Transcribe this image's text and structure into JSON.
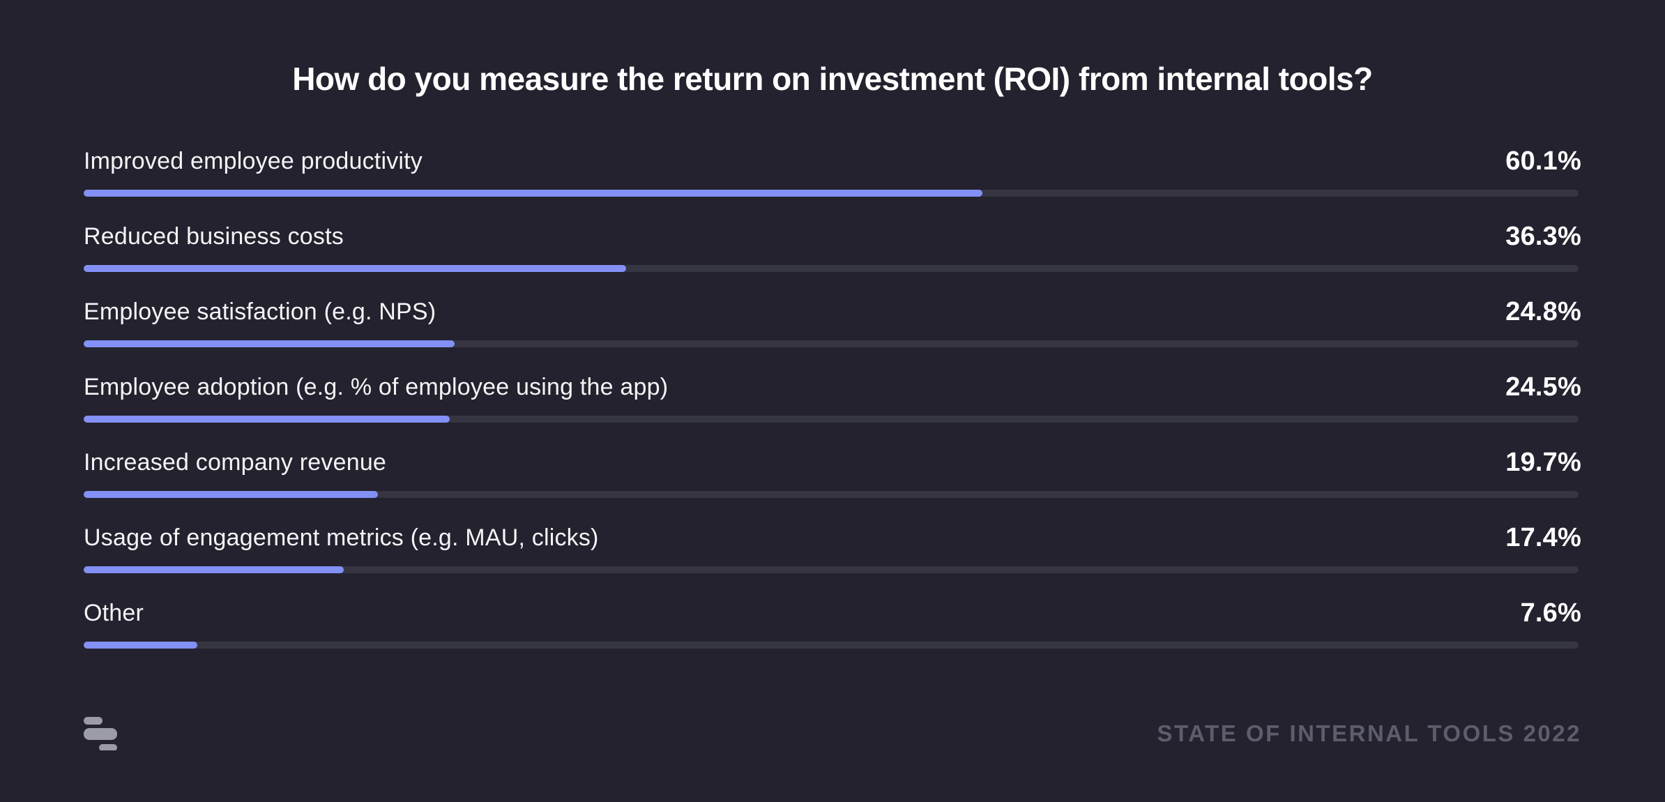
{
  "title": "How do you measure the return on investment (ROI) from internal tools?",
  "footer": {
    "logo_icon": "retool-logo",
    "source_label": "STATE OF INTERNAL TOOLS 2022"
  },
  "colors": {
    "background": "#23222E",
    "bar_fill": "#8390F6",
    "bar_track": "#363542",
    "title_text": "#FFFFFF",
    "label_text": "#F4F4F6",
    "value_text": "#FFFFFF",
    "footer_text": "#5D5D6B",
    "logo": "#9C9CA6"
  },
  "chart_data": {
    "type": "bar",
    "orientation": "horizontal",
    "title": "How do you measure the return on investment (ROI) from internal tools?",
    "categories": [
      "Improved employee productivity",
      "Reduced business costs",
      "Employee satisfaction (e.g. NPS)",
      "Employee adoption (e.g. % of employee using the app)",
      "Increased company revenue",
      "Usage of engagement metrics (e.g. MAU, clicks)",
      "Other"
    ],
    "values": [
      60.1,
      36.3,
      24.8,
      24.5,
      19.7,
      17.4,
      7.6
    ],
    "value_labels": [
      "60.1%",
      "36.3%",
      "24.8%",
      "24.5%",
      "19.7%",
      "17.4%",
      "7.6%"
    ],
    "value_suffix": "%",
    "xlim": [
      0,
      100
    ],
    "grid": false,
    "legend": false,
    "bar_style": "rounded-thin-progress"
  }
}
